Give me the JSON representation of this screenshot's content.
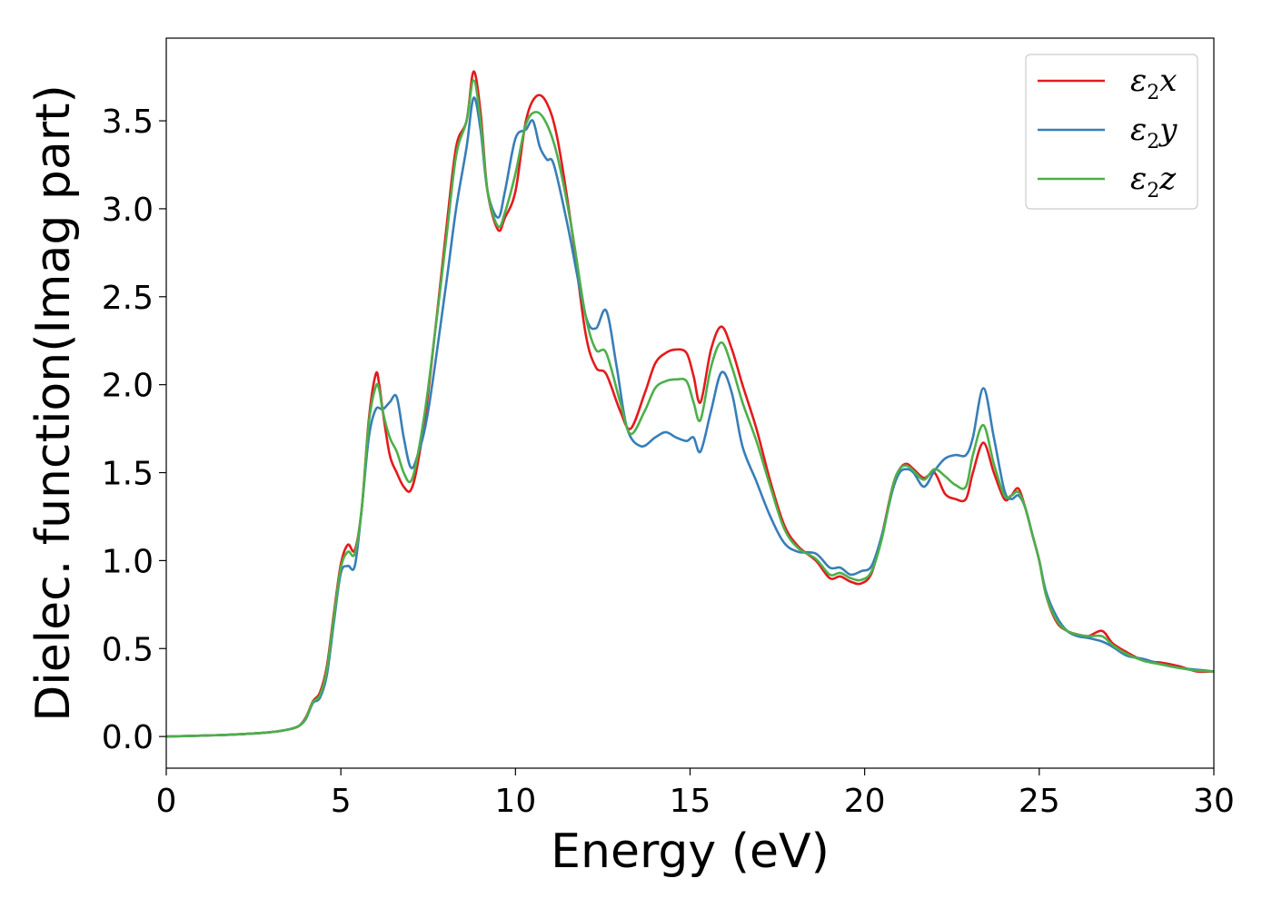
{
  "chart_data": {
    "type": "line",
    "title": "",
    "xlabel": "Energy (eV)",
    "ylabel": "Dielec. function(Imag part)",
    "xlim": [
      0,
      30
    ],
    "ylim": [
      -0.18,
      3.97
    ],
    "xticks": [
      0,
      5,
      10,
      15,
      20,
      25,
      30
    ],
    "yticks": [
      0.0,
      0.5,
      1.0,
      1.5,
      2.0,
      2.5,
      3.0,
      3.5
    ],
    "xtick_labels": [
      "0",
      "5",
      "10",
      "15",
      "20",
      "25",
      "30"
    ],
    "ytick_labels": [
      "0.0",
      "0.5",
      "1.0",
      "1.5",
      "2.0",
      "2.5",
      "3.0",
      "3.5"
    ],
    "grid": false,
    "legend_position": "top-right",
    "series": [
      {
        "name": "ε2x",
        "label_base": "ε",
        "label_sub": "2",
        "label_suffix": "x",
        "color": "#e41a1c",
        "x": [
          0,
          1,
          2,
          3,
          3.5,
          3.8,
          4.0,
          4.2,
          4.4,
          4.6,
          4.8,
          5.0,
          5.2,
          5.4,
          5.6,
          5.8,
          6.0,
          6.1,
          6.2,
          6.4,
          6.6,
          6.8,
          7.0,
          7.2,
          7.5,
          8.0,
          8.3,
          8.6,
          8.8,
          9.0,
          9.2,
          9.5,
          9.7,
          10.0,
          10.3,
          10.6,
          10.9,
          11.2,
          11.6,
          12.0,
          12.3,
          12.6,
          13.0,
          13.3,
          13.7,
          14.0,
          14.3,
          14.6,
          14.9,
          15.1,
          15.3,
          15.6,
          15.9,
          16.2,
          16.5,
          16.9,
          17.3,
          17.7,
          18.1,
          18.6,
          19.0,
          19.3,
          19.6,
          19.9,
          20.2,
          20.5,
          20.8,
          21.0,
          21.2,
          21.4,
          21.7,
          22.0,
          22.3,
          22.6,
          22.9,
          23.1,
          23.4,
          23.7,
          24.0,
          24.2,
          24.4,
          24.6,
          24.8,
          25.0,
          25.2,
          25.5,
          25.8,
          26.1,
          26.4,
          26.8,
          27.1,
          27.5,
          28.0,
          28.5,
          29.0,
          29.5,
          30.0
        ],
        "y": [
          0.0,
          0.005,
          0.012,
          0.025,
          0.04,
          0.06,
          0.11,
          0.2,
          0.25,
          0.4,
          0.7,
          0.98,
          1.09,
          1.06,
          1.3,
          1.8,
          2.06,
          2.0,
          1.85,
          1.6,
          1.5,
          1.42,
          1.4,
          1.55,
          1.95,
          2.85,
          3.35,
          3.5,
          3.78,
          3.55,
          3.1,
          2.88,
          2.95,
          3.1,
          3.5,
          3.64,
          3.6,
          3.4,
          2.9,
          2.3,
          2.1,
          2.06,
          1.85,
          1.75,
          1.95,
          2.12,
          2.18,
          2.2,
          2.18,
          2.05,
          1.9,
          2.2,
          2.33,
          2.2,
          2.0,
          1.75,
          1.45,
          1.2,
          1.08,
          1.0,
          0.9,
          0.91,
          0.88,
          0.87,
          0.93,
          1.15,
          1.42,
          1.52,
          1.55,
          1.52,
          1.47,
          1.5,
          1.38,
          1.35,
          1.35,
          1.5,
          1.67,
          1.5,
          1.35,
          1.37,
          1.41,
          1.3,
          1.15,
          1.0,
          0.8,
          0.65,
          0.6,
          0.58,
          0.57,
          0.6,
          0.53,
          0.48,
          0.43,
          0.42,
          0.4,
          0.37,
          0.37
        ]
      },
      {
        "name": "ε2y",
        "label_base": "ε",
        "label_sub": "2",
        "label_suffix": "y",
        "color": "#377eb8",
        "x": [
          0,
          1,
          2,
          3,
          3.5,
          3.8,
          4.0,
          4.2,
          4.4,
          4.6,
          4.8,
          5.0,
          5.2,
          5.4,
          5.6,
          5.8,
          6.0,
          6.2,
          6.4,
          6.6,
          6.8,
          7.0,
          7.2,
          7.5,
          8.0,
          8.3,
          8.6,
          8.8,
          9.0,
          9.2,
          9.5,
          9.7,
          10.0,
          10.3,
          10.5,
          10.7,
          10.9,
          11.1,
          11.5,
          12.0,
          12.3,
          12.6,
          12.9,
          13.2,
          13.6,
          14.0,
          14.3,
          14.6,
          14.9,
          15.1,
          15.3,
          15.6,
          15.9,
          16.2,
          16.5,
          16.9,
          17.3,
          17.7,
          18.1,
          18.6,
          19.0,
          19.3,
          19.6,
          19.9,
          20.2,
          20.5,
          20.8,
          21.0,
          21.2,
          21.4,
          21.7,
          22.0,
          22.3,
          22.6,
          22.9,
          23.1,
          23.4,
          23.7,
          24.0,
          24.2,
          24.4,
          24.6,
          24.8,
          25.0,
          25.2,
          25.5,
          25.8,
          26.1,
          26.4,
          26.8,
          27.1,
          27.5,
          28.0,
          28.5,
          29.0,
          29.5,
          30.0
        ],
        "y": [
          0.0,
          0.005,
          0.012,
          0.025,
          0.04,
          0.06,
          0.1,
          0.19,
          0.22,
          0.35,
          0.65,
          0.93,
          0.97,
          0.97,
          1.3,
          1.7,
          1.86,
          1.86,
          1.9,
          1.93,
          1.7,
          1.53,
          1.6,
          1.85,
          2.55,
          3.0,
          3.35,
          3.63,
          3.45,
          3.1,
          2.95,
          3.1,
          3.4,
          3.45,
          3.5,
          3.35,
          3.28,
          3.25,
          2.9,
          2.4,
          2.32,
          2.42,
          2.1,
          1.75,
          1.65,
          1.7,
          1.73,
          1.7,
          1.68,
          1.7,
          1.62,
          1.85,
          2.07,
          1.95,
          1.65,
          1.45,
          1.25,
          1.1,
          1.05,
          1.04,
          0.96,
          0.96,
          0.92,
          0.94,
          0.97,
          1.15,
          1.4,
          1.5,
          1.52,
          1.5,
          1.42,
          1.51,
          1.58,
          1.6,
          1.6,
          1.7,
          1.98,
          1.7,
          1.4,
          1.35,
          1.37,
          1.3,
          1.15,
          1.0,
          0.82,
          0.68,
          0.6,
          0.57,
          0.56,
          0.54,
          0.51,
          0.46,
          0.44,
          0.41,
          0.39,
          0.38,
          0.37
        ]
      },
      {
        "name": "ε2z",
        "label_base": "ε",
        "label_sub": "2",
        "label_suffix": "z",
        "color": "#4daf4a",
        "x": [
          0,
          1,
          2,
          3,
          3.5,
          3.8,
          4.0,
          4.2,
          4.4,
          4.6,
          4.8,
          5.0,
          5.2,
          5.4,
          5.6,
          5.8,
          6.0,
          6.1,
          6.2,
          6.4,
          6.6,
          6.8,
          7.0,
          7.2,
          7.5,
          8.0,
          8.3,
          8.6,
          8.8,
          9.0,
          9.2,
          9.5,
          9.7,
          10.0,
          10.3,
          10.6,
          10.9,
          11.2,
          11.6,
          12.0,
          12.3,
          12.6,
          13.0,
          13.3,
          13.7,
          14.0,
          14.3,
          14.6,
          14.9,
          15.1,
          15.3,
          15.6,
          15.9,
          16.2,
          16.5,
          16.9,
          17.3,
          17.7,
          18.1,
          18.6,
          19.0,
          19.3,
          19.6,
          19.9,
          20.2,
          20.5,
          20.8,
          21.0,
          21.2,
          21.4,
          21.7,
          22.0,
          22.3,
          22.6,
          22.9,
          23.1,
          23.4,
          23.7,
          24.0,
          24.2,
          24.4,
          24.6,
          24.8,
          25.0,
          25.2,
          25.5,
          25.8,
          26.1,
          26.4,
          26.8,
          27.1,
          27.5,
          28.0,
          28.5,
          29.0,
          29.5,
          30.0
        ],
        "y": [
          0.0,
          0.005,
          0.012,
          0.025,
          0.04,
          0.06,
          0.105,
          0.195,
          0.235,
          0.38,
          0.68,
          0.96,
          1.05,
          1.04,
          1.3,
          1.78,
          1.99,
          1.97,
          1.85,
          1.7,
          1.62,
          1.5,
          1.45,
          1.6,
          1.98,
          2.8,
          3.3,
          3.5,
          3.73,
          3.5,
          3.1,
          2.9,
          2.98,
          3.2,
          3.48,
          3.55,
          3.48,
          3.3,
          2.9,
          2.4,
          2.2,
          2.18,
          1.9,
          1.72,
          1.85,
          1.98,
          2.02,
          2.03,
          2.02,
          1.9,
          1.8,
          2.1,
          2.24,
          2.1,
          1.9,
          1.68,
          1.42,
          1.18,
          1.07,
          1.01,
          0.92,
          0.93,
          0.9,
          0.89,
          0.94,
          1.13,
          1.42,
          1.52,
          1.54,
          1.51,
          1.46,
          1.52,
          1.48,
          1.43,
          1.42,
          1.6,
          1.77,
          1.55,
          1.37,
          1.37,
          1.39,
          1.3,
          1.15,
          1.0,
          0.8,
          0.66,
          0.6,
          0.58,
          0.57,
          0.57,
          0.52,
          0.47,
          0.43,
          0.41,
          0.39,
          0.375,
          0.37
        ]
      }
    ]
  }
}
